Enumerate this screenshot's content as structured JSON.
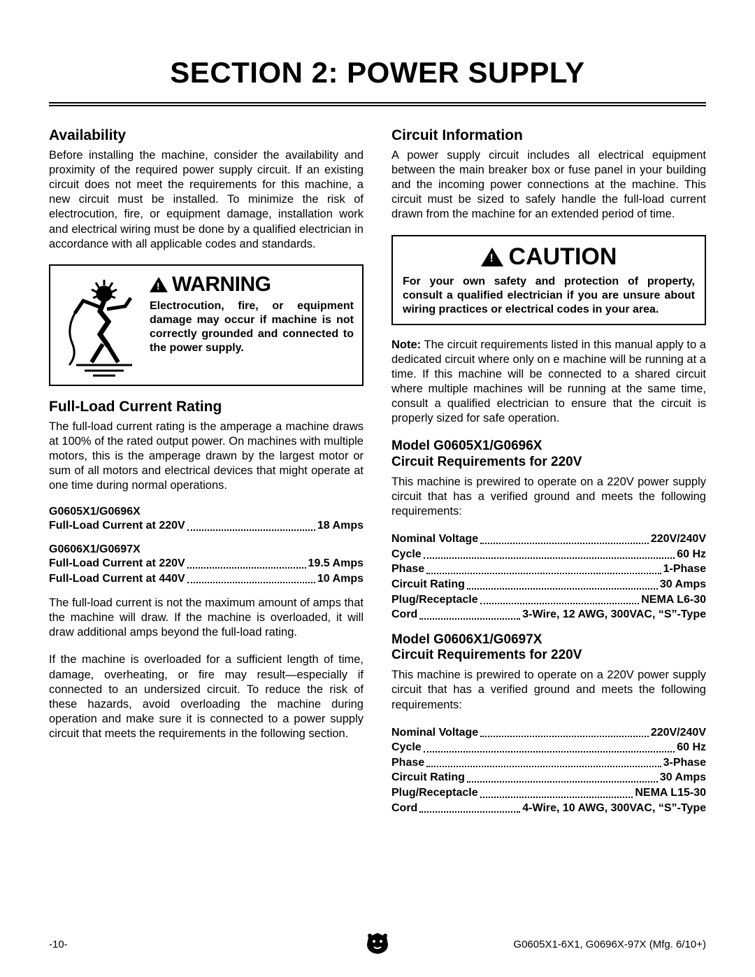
{
  "section_title": "SECTION 2: POWER SUPPLY",
  "left": {
    "availability": {
      "heading": "Availability",
      "text": "Before installing the machine, consider the availability and proximity of the required power supply circuit. If an existing circuit does not meet the requirements for this machine, a new circuit must be installed. To minimize the risk of electrocution, fire, or equipment damage, installation work and electrical wiring must be done by a qualified electrician in accordance with all applicable codes and standards."
    },
    "warning": {
      "title": "WARNING",
      "body": "Electrocution, fire, or equipment damage may occur if machine is not correctly grounded and connected to the power supply."
    },
    "full_load": {
      "heading": "Full-Load Current Rating",
      "text": "The full-load current rating is the amperage a machine draws at 100% of the rated output power. On machines with multiple motors, this is the amperage drawn by the largest motor or sum of all motors and electrical devices that might operate at one time during normal operations.",
      "model_a": "G0605X1/G0696X",
      "model_a_rows": [
        {
          "label": "Full-Load Current at 220V",
          "value": "18 Amps"
        }
      ],
      "model_b": "G0606X1/G0697X",
      "model_b_rows": [
        {
          "label": "Full-Load Current at 220V",
          "value": "19.5 Amps"
        },
        {
          "label": "Full-Load Current at 440V",
          "value": "10 Amps"
        }
      ],
      "text2": "The full-load current is not the maximum amount of amps that the machine will draw. If the machine is overloaded, it will draw additional amps beyond the full-load rating.",
      "text3": "If the machine is overloaded for a sufficient length of time, damage, overheating, or fire may result—especially if connected to an undersized circuit. To reduce the risk of these hazards, avoid overloading the machine during operation and make sure it is connected to a power supply circuit that meets the requirements in the following section."
    }
  },
  "right": {
    "circuit_info": {
      "heading": "Circuit Information",
      "text": "A power supply circuit includes all electrical equipment between the main breaker box or fuse panel in your building and the incoming power connections at the machine. This circuit must be sized to safely handle the full-load current drawn from the machine for an extended period of time."
    },
    "caution": {
      "title": "CAUTION",
      "body": "For your own safety and protection of property, consult a qualified electrician if you are unsure about wiring practices or electrical codes in your area."
    },
    "note": {
      "lead": "Note:",
      "text": " The circuit requirements listed in this manual apply to a dedicated circuit where only on e machine will be running at a time. If this machine will be connected to a shared circuit where multiple machines will be running at the same time, consult a qualified electrician to ensure that the circuit is properly sized for safe operation."
    },
    "req_a": {
      "heading_l1": "Model G0605X1/G0696X",
      "heading_l2": "Circuit Requirements for 220V",
      "text": "This machine is prewired to operate on a 220V power supply circuit that has a verified ground and meets the following requirements:",
      "rows": [
        {
          "label": "Nominal Voltage",
          "value": "220V/240V"
        },
        {
          "label": "Cycle",
          "value": "60 Hz"
        },
        {
          "label": "Phase",
          "value": "1-Phase"
        },
        {
          "label": "Circuit Rating",
          "value": "30 Amps"
        },
        {
          "label": "Plug/Receptacle",
          "value": "NEMA L6-30"
        },
        {
          "label": "Cord",
          "value": "3-Wire, 12 AWG, 300VAC, “S”-Type"
        }
      ]
    },
    "req_b": {
      "heading_l1": "Model G0606X1/G0697X",
      "heading_l2": "Circuit Requirements for 220V",
      "text": "This machine is prewired to operate on a 220V power supply circuit that has a verified ground and meets the following requirements:",
      "rows": [
        {
          "label": "Nominal Voltage",
          "value": "220V/240V"
        },
        {
          "label": "Cycle",
          "value": "60 Hz"
        },
        {
          "label": "Phase",
          "value": "3-Phase"
        },
        {
          "label": "Circuit Rating",
          "value": "30 Amps"
        },
        {
          "label": "Plug/Receptacle",
          "value": "NEMA L15-30"
        },
        {
          "label": "Cord",
          "value": "4-Wire, 10 AWG, 300VAC, “S”-Type"
        }
      ]
    }
  },
  "footer": {
    "page": "-10-",
    "right": "G0605X1-6X1, G0696X-97X (Mfg. 6/10+)"
  }
}
